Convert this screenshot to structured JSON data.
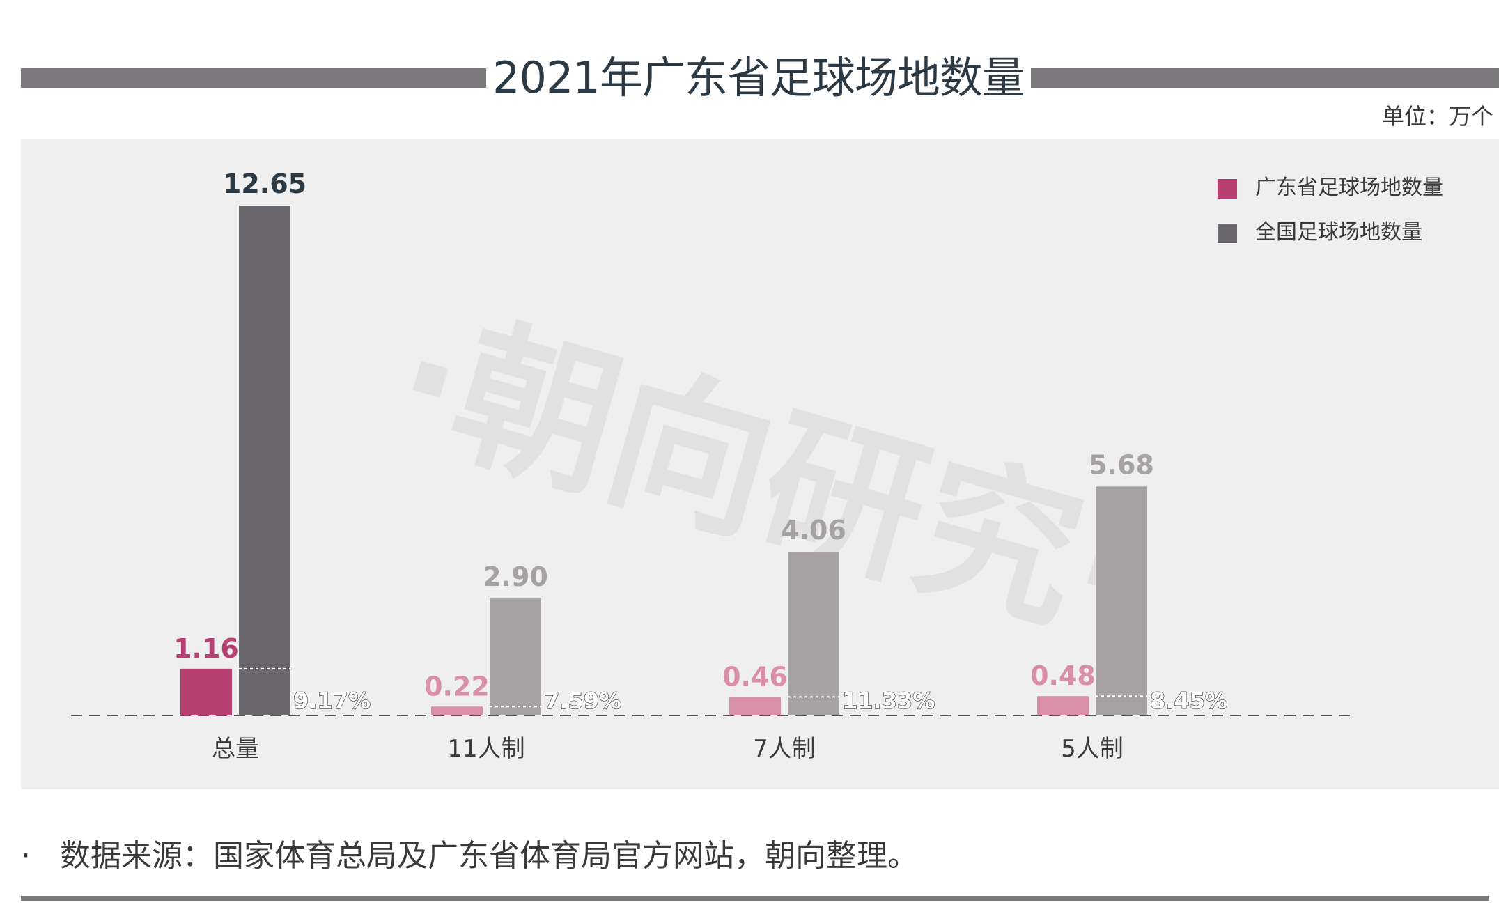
{
  "title": "2021年广东省足球场地数量",
  "unit": "单位：万个",
  "watermark": "·朝向研究·",
  "source_bullet": "·",
  "source": "数据来源：国家体育总局及广东省体育局官方网站，朝向整理。",
  "colors": {
    "guangdong_strong": "#b83f72",
    "guangdong_light": "#d98fa7",
    "national_strong": "#6b686d",
    "national_light": "#a6a2a3",
    "panel": "#efefef",
    "title_text": "#2c3a45"
  },
  "chart_data": {
    "type": "bar",
    "categories": [
      "总量",
      "11人制",
      "7人制",
      "5人制"
    ],
    "series": [
      {
        "name": "广东省足球场地数量",
        "values": [
          1.16,
          0.22,
          0.46,
          0.48
        ],
        "labels": [
          "1.16",
          "0.22",
          "0.46",
          "0.48"
        ]
      },
      {
        "name": "全国足球场地数量",
        "values": [
          12.65,
          2.9,
          4.06,
          5.68
        ],
        "labels": [
          "12.65",
          "2.90",
          "4.06",
          "5.68"
        ]
      }
    ],
    "share_labels": [
      "9.17%",
      "7.59%",
      "11.33%",
      "8.45%"
    ],
    "legend_position": "top-right",
    "grid": false
  }
}
